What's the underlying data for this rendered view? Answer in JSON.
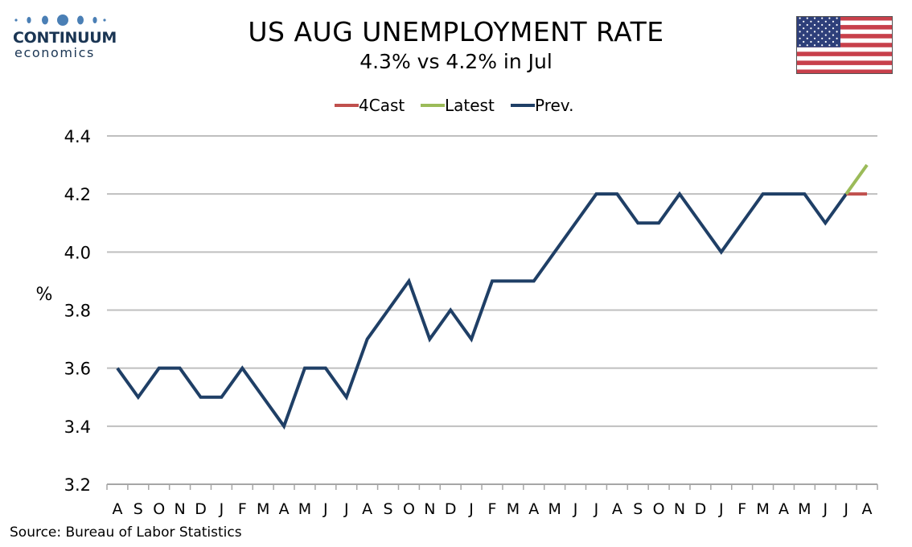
{
  "brand": {
    "name": "CONTINUUM",
    "sub": "economics"
  },
  "header": {
    "title": "US AUG UNEMPLOYMENT RATE",
    "subtitle": "4.3% vs 4.2% in Jul"
  },
  "source": "Source: Bureau of Labor Statistics",
  "colors": {
    "forecast": "#c0504d",
    "latest": "#9bbb59",
    "prev": "#1f3f66",
    "grid": "#bfbfbf",
    "axis": "#a6a6a6"
  },
  "chart_data": {
    "type": "line",
    "title": "US AUG UNEMPLOYMENT RATE",
    "subtitle": "4.3% vs 4.2% in Jul",
    "ylabel": "%",
    "xlabel": "",
    "ylim": [
      3.2,
      4.4
    ],
    "yticks": [
      3.2,
      3.4,
      3.6,
      3.8,
      4.0,
      4.2,
      4.4
    ],
    "ytick_labels": [
      "3.2",
      "3.4",
      "3.6",
      "3.8",
      "4.0",
      "4.2",
      "4.4"
    ],
    "grid": true,
    "legend_position": "top-center",
    "categories": [
      "A",
      "S",
      "O",
      "N",
      "D",
      "J",
      "F",
      "M",
      "A",
      "M",
      "J",
      "J",
      "A",
      "S",
      "O",
      "N",
      "D",
      "J",
      "F",
      "M",
      "A",
      "M",
      "J",
      "J",
      "A",
      "S",
      "O",
      "N",
      "D",
      "J",
      "F",
      "M",
      "A",
      "M",
      "J",
      "J",
      "A"
    ],
    "series": [
      {
        "name": "4Cast",
        "color": "#c0504d",
        "values": [
          null,
          null,
          null,
          null,
          null,
          null,
          null,
          null,
          null,
          null,
          null,
          null,
          null,
          null,
          null,
          null,
          null,
          null,
          null,
          null,
          null,
          null,
          null,
          null,
          null,
          null,
          null,
          null,
          null,
          null,
          null,
          null,
          null,
          null,
          null,
          4.2,
          4.2
        ]
      },
      {
        "name": "Latest",
        "color": "#9bbb59",
        "values": [
          null,
          null,
          null,
          null,
          null,
          null,
          null,
          null,
          null,
          null,
          null,
          null,
          null,
          null,
          null,
          null,
          null,
          null,
          null,
          null,
          null,
          null,
          null,
          null,
          null,
          null,
          null,
          null,
          null,
          null,
          null,
          null,
          null,
          null,
          null,
          4.2,
          4.3
        ]
      },
      {
        "name": "Prev.",
        "color": "#1f3f66",
        "values": [
          3.6,
          3.5,
          3.6,
          3.6,
          3.5,
          3.5,
          3.6,
          3.5,
          3.4,
          3.6,
          3.6,
          3.5,
          3.7,
          3.8,
          3.9,
          3.7,
          3.8,
          3.7,
          3.9,
          3.9,
          3.9,
          4.0,
          4.1,
          4.2,
          4.2,
          4.1,
          4.1,
          4.2,
          4.1,
          4.0,
          4.1,
          4.2,
          4.2,
          4.2,
          4.1,
          4.2,
          null
        ]
      }
    ]
  }
}
